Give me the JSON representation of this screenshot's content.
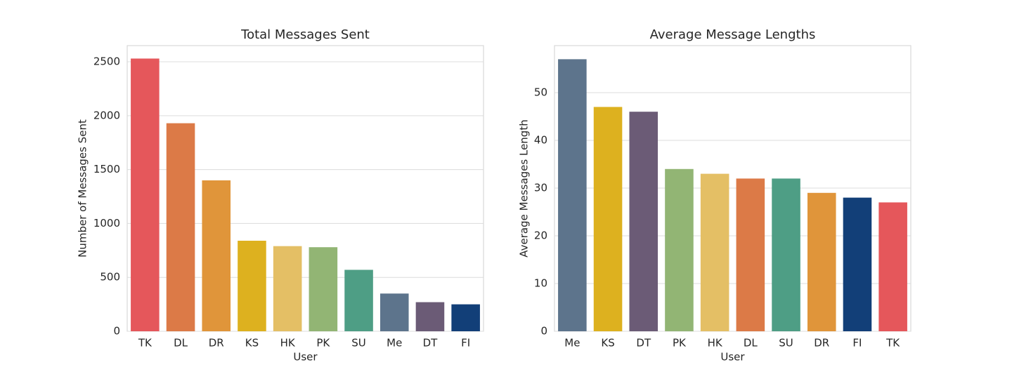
{
  "chart_data": [
    {
      "type": "bar",
      "title": "Total Messages Sent",
      "xlabel": "User",
      "ylabel": "Number of Messages Sent",
      "categories": [
        "TK",
        "DL",
        "DR",
        "KS",
        "HK",
        "PK",
        "SU",
        "Me",
        "DT",
        "FI"
      ],
      "values": [
        2530,
        1930,
        1400,
        840,
        790,
        780,
        570,
        350,
        270,
        250
      ],
      "colors": [
        "#e5575b",
        "#dc7a47",
        "#e0953a",
        "#ddb11f",
        "#e4bf65",
        "#92b574",
        "#4e9e85",
        "#5d748c",
        "#6b5b76",
        "#123f78"
      ],
      "ylim": [
        0,
        2650
      ],
      "yticks": [
        0,
        500,
        1000,
        1500,
        2000,
        2500
      ],
      "grid": true
    },
    {
      "type": "bar",
      "title": "Average Message Lengths",
      "xlabel": "User",
      "ylabel": "Average Messages Length",
      "categories": [
        "Me",
        "KS",
        "DT",
        "PK",
        "HK",
        "DL",
        "SU",
        "DR",
        "FI",
        "TK"
      ],
      "values": [
        57,
        47,
        46,
        34,
        33,
        32,
        32,
        29,
        28,
        27
      ],
      "colors": [
        "#5d748c",
        "#ddb11f",
        "#6b5b76",
        "#92b574",
        "#e4bf65",
        "#dc7a47",
        "#4e9e85",
        "#e0953a",
        "#123f78",
        "#e5575b"
      ],
      "ylim": [
        0,
        59.85
      ],
      "yticks": [
        0,
        10,
        20,
        30,
        40,
        50
      ],
      "grid": true
    }
  ]
}
